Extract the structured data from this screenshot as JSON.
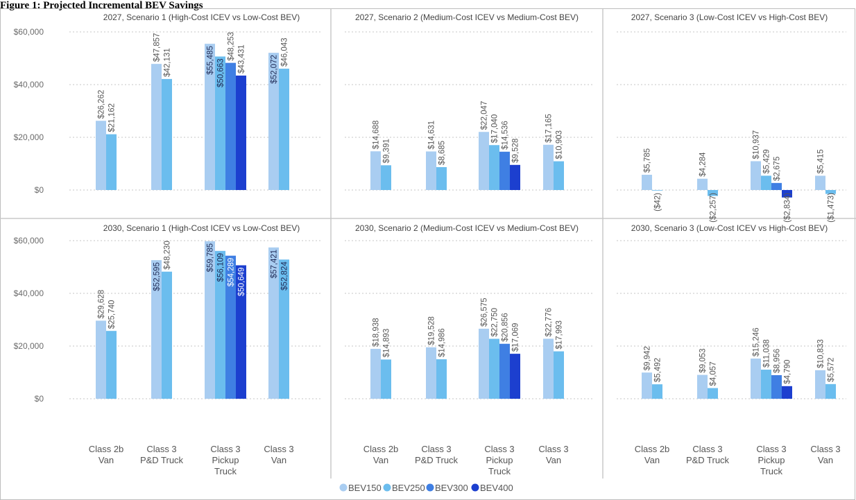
{
  "figure_title": "Figure 1: Projected Incremental BEV Savings",
  "colors": {
    "BEV150": "#a9cdf1",
    "BEV250": "#6bbdee",
    "BEV300": "#3f7fe3",
    "BEV400": "#1c3fcf"
  },
  "chart_data": {
    "type": "bar",
    "categories": [
      [
        "Class 2b",
        "Van"
      ],
      [
        "Class 3",
        "P&D Truck"
      ],
      [
        "Class 3",
        "Pickup",
        "Truck"
      ],
      [
        "Class 3",
        "Van"
      ]
    ],
    "series_names": [
      "BEV150",
      "BEV250",
      "BEV300",
      "BEV400"
    ],
    "y_ticks": [
      "$60,000",
      "$40,000",
      "$20,000",
      "$0"
    ],
    "ylim": [
      -8000,
      60000
    ],
    "grid": true,
    "legend_position": "bottom",
    "panels": [
      {
        "title": "2027, Scenario 1 (High-Cost ICEV vs Low-Cost BEV)",
        "groups": [
          {
            "values": [
              26262,
              21162
            ],
            "labels": [
              "$26,262",
              "$21,162"
            ]
          },
          {
            "values": [
              47857,
              42131
            ],
            "labels": [
              "$47,857",
              "$42,131"
            ]
          },
          {
            "values": [
              55485,
              50663,
              48253,
              43431
            ],
            "labels": [
              "$55,485",
              "$50,663",
              "$48,253",
              "$43,431"
            ]
          },
          {
            "values": [
              52072,
              46043
            ],
            "labels": [
              "$52,072",
              "$46,043"
            ]
          }
        ]
      },
      {
        "title": "2027, Scenario 2 (Medium-Cost ICEV vs Medium-Cost BEV)",
        "groups": [
          {
            "values": [
              14688,
              9391
            ],
            "labels": [
              "$14,688",
              "$9,391"
            ]
          },
          {
            "values": [
              14631,
              8685
            ],
            "labels": [
              "$14,631",
              "$8,685"
            ]
          },
          {
            "values": [
              22047,
              17040,
              14536,
              9528
            ],
            "labels": [
              "$22,047",
              "$17,040",
              "$14,536",
              "$9,528"
            ]
          },
          {
            "values": [
              17165,
              10903
            ],
            "labels": [
              "$17,165",
              "$10,903"
            ]
          }
        ]
      },
      {
        "title": "2027, Scenario 3 (Low-Cost ICEV vs High-Cost BEV)",
        "groups": [
          {
            "values": [
              5785,
              -42
            ],
            "labels": [
              "$5,785",
              "($42)"
            ]
          },
          {
            "values": [
              4284,
              -2257
            ],
            "labels": [
              "$4,284",
              "($2,257)"
            ]
          },
          {
            "values": [
              10937,
              5429,
              2675,
              -2834
            ],
            "labels": [
              "$10,937",
              "$5,429",
              "$2,675",
              "($2,834)"
            ]
          },
          {
            "values": [
              5415,
              -1473
            ],
            "labels": [
              "$5,415",
              "($1,473)"
            ]
          }
        ]
      },
      {
        "title": "2030, Scenario 1 (High-Cost ICEV vs Low-Cost BEV)",
        "groups": [
          {
            "values": [
              29628,
              25740
            ],
            "labels": [
              "$29,628",
              "$25,740"
            ]
          },
          {
            "values": [
              52595,
              48230
            ],
            "labels": [
              "$52,595",
              "$48,230"
            ]
          },
          {
            "values": [
              59785,
              56109,
              54289,
              50649
            ],
            "labels": [
              "$59,785",
              "$56,109",
              "$54,289",
              "$50,649"
            ]
          },
          {
            "values": [
              57421,
              52824
            ],
            "labels": [
              "$57,421",
              "$52,824"
            ]
          }
        ]
      },
      {
        "title": "2030, Scenario 2 (Medium-Cost ICEV vs Medium-Cost BEV)",
        "groups": [
          {
            "values": [
              18938,
              14893
            ],
            "labels": [
              "$18,938",
              "$14,893"
            ]
          },
          {
            "values": [
              19528,
              14986
            ],
            "labels": [
              "$19,528",
              "$14,986"
            ]
          },
          {
            "values": [
              26575,
              22750,
              20856,
              17069
            ],
            "labels": [
              "$26,575",
              "$22,750",
              "$20,856",
              "$17,069"
            ]
          },
          {
            "values": [
              22776,
              17993
            ],
            "labels": [
              "$22,776",
              "$17,993"
            ]
          }
        ]
      },
      {
        "title": "2030, Scenario 3 (Low-Cost ICEV vs High-Cost BEV)",
        "groups": [
          {
            "values": [
              9942,
              5492
            ],
            "labels": [
              "$9,942",
              "$5,492"
            ]
          },
          {
            "values": [
              9053,
              4057
            ],
            "labels": [
              "$9,053",
              "$4,057"
            ]
          },
          {
            "values": [
              15246,
              11038,
              8956,
              4790
            ],
            "labels": [
              "$15,246",
              "$11,038",
              "$8,956",
              "$4,790"
            ]
          },
          {
            "values": [
              10833,
              5572
            ],
            "labels": [
              "$10,833",
              "$5,572"
            ]
          }
        ]
      }
    ]
  }
}
